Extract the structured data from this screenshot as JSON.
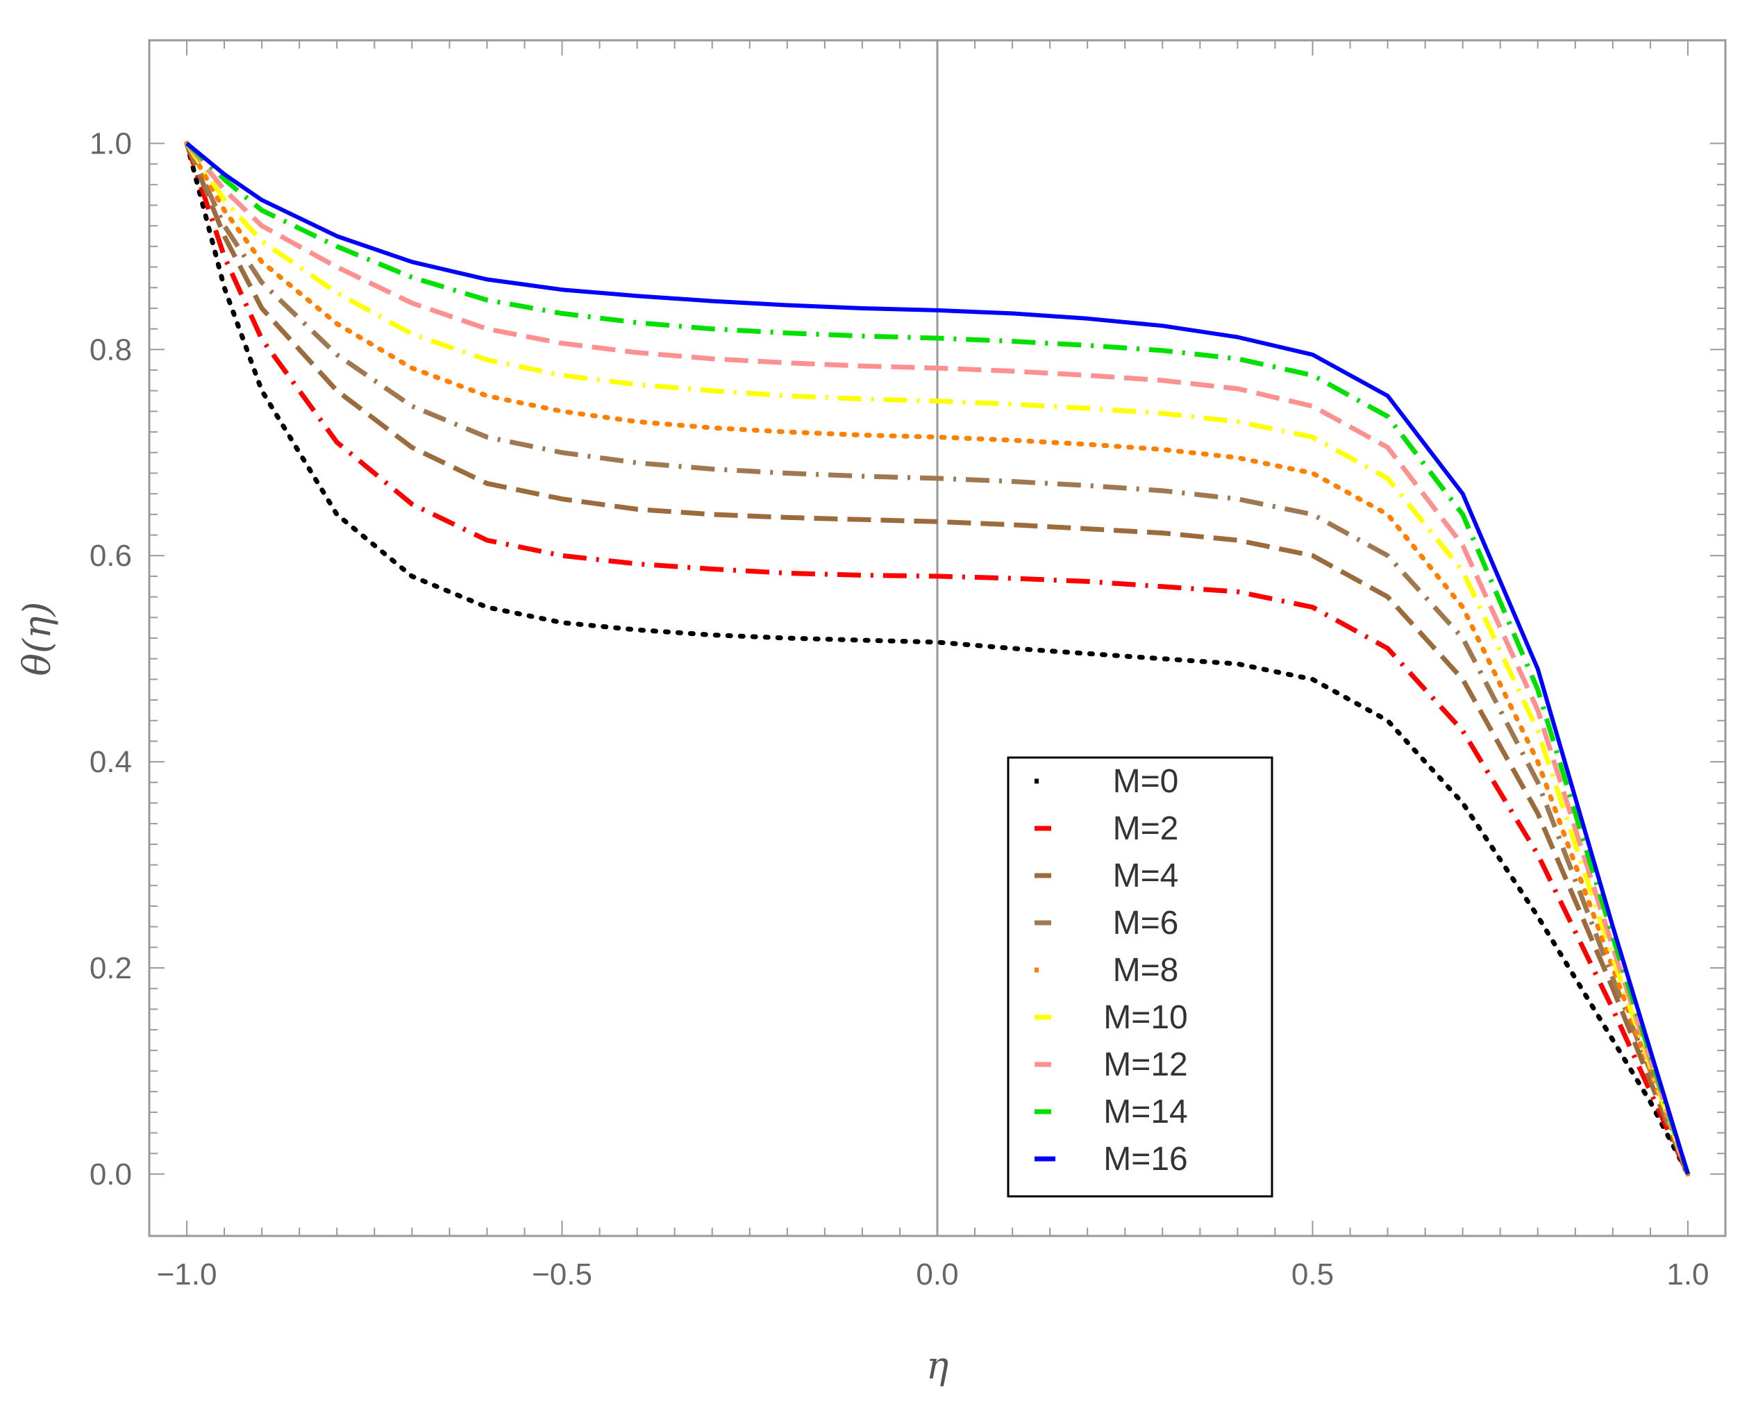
{
  "chart_data": {
    "type": "line",
    "title": "",
    "xlabel": "η",
    "ylabel": "θ(η)",
    "xlim": [
      -1.05,
      1.05
    ],
    "ylim": [
      -0.06,
      1.1
    ],
    "x_ticks": [
      "-1.0",
      "-0.5",
      "0.0",
      "0.5",
      "1.0"
    ],
    "y_ticks": [
      "0.0",
      "0.2",
      "0.4",
      "0.6",
      "0.8",
      "1.0"
    ],
    "grid": false,
    "legend_position": "bottom-center",
    "x": [
      -1.0,
      -0.95,
      -0.9,
      -0.8,
      -0.7,
      -0.6,
      -0.5,
      -0.4,
      -0.3,
      -0.2,
      -0.1,
      0.0,
      0.1,
      0.2,
      0.3,
      0.4,
      0.5,
      0.6,
      0.7,
      0.8,
      0.9,
      0.95,
      1.0
    ],
    "series": [
      {
        "name": "M=0",
        "color": "#000000",
        "dash": "dotted",
        "values": [
          1.0,
          0.86,
          0.76,
          0.64,
          0.58,
          0.55,
          0.535,
          0.528,
          0.523,
          0.52,
          0.518,
          0.516,
          0.51,
          0.505,
          0.5,
          0.495,
          0.48,
          0.44,
          0.36,
          0.25,
          0.13,
          0.07,
          0.0
        ]
      },
      {
        "name": "M=2",
        "color": "#ff0000",
        "dash": "dashdot",
        "values": [
          1.0,
          0.89,
          0.81,
          0.71,
          0.65,
          0.615,
          0.6,
          0.592,
          0.587,
          0.583,
          0.581,
          0.58,
          0.578,
          0.575,
          0.57,
          0.565,
          0.55,
          0.51,
          0.43,
          0.31,
          0.16,
          0.08,
          0.0
        ]
      },
      {
        "name": "M=4",
        "color": "#9c6b3c",
        "dash": "longdash",
        "values": [
          1.0,
          0.91,
          0.84,
          0.76,
          0.705,
          0.67,
          0.655,
          0.645,
          0.64,
          0.637,
          0.635,
          0.633,
          0.63,
          0.626,
          0.622,
          0.615,
          0.6,
          0.56,
          0.48,
          0.35,
          0.18,
          0.09,
          0.0
        ]
      },
      {
        "name": "M=6",
        "color": "#a07850",
        "dash": "dashdot",
        "values": [
          1.0,
          0.92,
          0.865,
          0.795,
          0.745,
          0.715,
          0.7,
          0.69,
          0.684,
          0.68,
          0.677,
          0.675,
          0.672,
          0.668,
          0.663,
          0.655,
          0.64,
          0.6,
          0.52,
          0.38,
          0.19,
          0.1,
          0.0
        ]
      },
      {
        "name": "M=8",
        "color": "#ff7f00",
        "dash": "dotted",
        "values": [
          1.0,
          0.935,
          0.885,
          0.825,
          0.782,
          0.755,
          0.74,
          0.73,
          0.724,
          0.72,
          0.717,
          0.715,
          0.712,
          0.708,
          0.703,
          0.695,
          0.68,
          0.64,
          0.55,
          0.4,
          0.2,
          0.1,
          0.0
        ]
      },
      {
        "name": "M=10",
        "color": "#ffff00",
        "dash": "dashdot",
        "values": [
          1.0,
          0.945,
          0.905,
          0.855,
          0.815,
          0.79,
          0.775,
          0.766,
          0.76,
          0.755,
          0.752,
          0.75,
          0.747,
          0.743,
          0.738,
          0.73,
          0.715,
          0.675,
          0.585,
          0.43,
          0.21,
          0.105,
          0.0
        ]
      },
      {
        "name": "M=12",
        "color": "#ff9090",
        "dash": "longdash",
        "values": [
          1.0,
          0.955,
          0.92,
          0.88,
          0.845,
          0.82,
          0.806,
          0.797,
          0.791,
          0.787,
          0.784,
          0.782,
          0.779,
          0.775,
          0.77,
          0.762,
          0.745,
          0.705,
          0.61,
          0.45,
          0.22,
          0.11,
          0.0
        ]
      },
      {
        "name": "M=14",
        "color": "#00e000",
        "dash": "dashdot",
        "values": [
          1.0,
          0.965,
          0.935,
          0.9,
          0.87,
          0.848,
          0.835,
          0.826,
          0.82,
          0.816,
          0.813,
          0.811,
          0.808,
          0.804,
          0.799,
          0.791,
          0.775,
          0.735,
          0.64,
          0.47,
          0.23,
          0.115,
          0.0
        ]
      },
      {
        "name": "M=16",
        "color": "#0000ff",
        "dash": "solid",
        "values": [
          1.0,
          0.97,
          0.945,
          0.91,
          0.885,
          0.868,
          0.858,
          0.852,
          0.847,
          0.843,
          0.84,
          0.838,
          0.835,
          0.83,
          0.823,
          0.812,
          0.795,
          0.755,
          0.66,
          0.49,
          0.24,
          0.12,
          0.0
        ]
      }
    ]
  }
}
